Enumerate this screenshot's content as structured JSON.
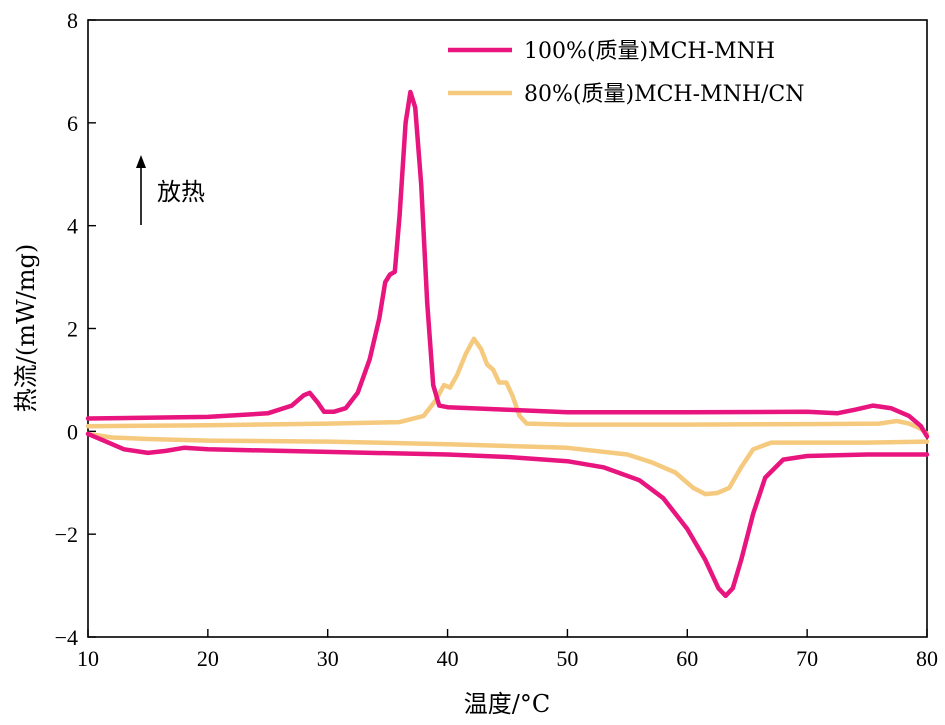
{
  "chart_data": {
    "type": "line",
    "xlabel": "温度/°C",
    "ylabel": "热流/(mW/mg)",
    "xlim": [
      10,
      80
    ],
    "ylim": [
      -4,
      8
    ],
    "xticks": [
      "10",
      "20",
      "30",
      "40",
      "50",
      "60",
      "70",
      "80"
    ],
    "yticks": [
      "−4",
      "−2",
      "0",
      "2",
      "4",
      "6",
      "8"
    ],
    "grid": false,
    "legend_position": "top-right",
    "annotation": "放热",
    "series": [
      {
        "name": "100%(质量)MCH-MNH",
        "color": "#e8157f",
        "heating": [
          [
            10,
            0.25
          ],
          [
            20,
            0.28
          ],
          [
            25,
            0.35
          ],
          [
            27,
            0.5
          ],
          [
            28,
            0.7
          ],
          [
            28.5,
            0.75
          ],
          [
            29.2,
            0.55
          ],
          [
            29.7,
            0.38
          ],
          [
            30.5,
            0.38
          ],
          [
            31.5,
            0.45
          ],
          [
            32.5,
            0.75
          ],
          [
            33.5,
            1.4
          ],
          [
            34.3,
            2.2
          ],
          [
            34.8,
            2.9
          ],
          [
            35.2,
            3.05
          ],
          [
            35.6,
            3.1
          ],
          [
            36.0,
            4.2
          ],
          [
            36.5,
            6.0
          ],
          [
            36.9,
            6.6
          ],
          [
            37.3,
            6.3
          ],
          [
            37.8,
            4.8
          ],
          [
            38.3,
            2.5
          ],
          [
            38.8,
            0.9
          ],
          [
            39.3,
            0.5
          ],
          [
            40,
            0.47
          ],
          [
            45,
            0.42
          ],
          [
            50,
            0.37
          ],
          [
            60,
            0.37
          ],
          [
            70,
            0.38
          ],
          [
            72.5,
            0.35
          ],
          [
            74,
            0.42
          ],
          [
            75.5,
            0.5
          ],
          [
            77,
            0.45
          ],
          [
            78.5,
            0.3
          ],
          [
            79.5,
            0.1
          ],
          [
            80,
            -0.1
          ]
        ],
        "cooling": [
          [
            80,
            -0.45
          ],
          [
            75,
            -0.45
          ],
          [
            70,
            -0.48
          ],
          [
            68,
            -0.55
          ],
          [
            66.5,
            -0.9
          ],
          [
            65.5,
            -1.6
          ],
          [
            64.5,
            -2.5
          ],
          [
            63.8,
            -3.05
          ],
          [
            63.2,
            -3.2
          ],
          [
            62.6,
            -3.05
          ],
          [
            61.5,
            -2.5
          ],
          [
            60,
            -1.9
          ],
          [
            58,
            -1.3
          ],
          [
            56,
            -0.95
          ],
          [
            53,
            -0.7
          ],
          [
            50,
            -0.58
          ],
          [
            45,
            -0.5
          ],
          [
            40,
            -0.45
          ],
          [
            30,
            -0.4
          ],
          [
            20,
            -0.35
          ],
          [
            18,
            -0.32
          ],
          [
            16.5,
            -0.38
          ],
          [
            15,
            -0.42
          ],
          [
            13,
            -0.35
          ],
          [
            11.5,
            -0.2
          ],
          [
            10,
            -0.05
          ]
        ]
      },
      {
        "name": "80%(质量)MCH-MNH/CN",
        "color": "#f5c97e",
        "heating": [
          [
            10,
            0.1
          ],
          [
            20,
            0.12
          ],
          [
            30,
            0.15
          ],
          [
            36,
            0.18
          ],
          [
            38,
            0.3
          ],
          [
            39,
            0.6
          ],
          [
            39.7,
            0.9
          ],
          [
            40.2,
            0.85
          ],
          [
            40.8,
            1.1
          ],
          [
            41.5,
            1.5
          ],
          [
            42.2,
            1.8
          ],
          [
            42.8,
            1.6
          ],
          [
            43.3,
            1.3
          ],
          [
            43.8,
            1.2
          ],
          [
            44.3,
            0.95
          ],
          [
            44.9,
            0.95
          ],
          [
            45.4,
            0.7
          ],
          [
            46,
            0.3
          ],
          [
            46.6,
            0.15
          ],
          [
            50,
            0.13
          ],
          [
            60,
            0.13
          ],
          [
            70,
            0.14
          ],
          [
            76,
            0.15
          ],
          [
            77.5,
            0.2
          ],
          [
            78.5,
            0.15
          ],
          [
            79.5,
            0.05
          ],
          [
            80,
            -0.05
          ]
        ],
        "cooling": [
          [
            80,
            -0.2
          ],
          [
            75,
            -0.22
          ],
          [
            70,
            -0.22
          ],
          [
            67,
            -0.22
          ],
          [
            65.5,
            -0.35
          ],
          [
            64.5,
            -0.7
          ],
          [
            63.5,
            -1.1
          ],
          [
            62.5,
            -1.2
          ],
          [
            61.5,
            -1.22
          ],
          [
            60.5,
            -1.1
          ],
          [
            59,
            -0.8
          ],
          [
            57,
            -0.6
          ],
          [
            55,
            -0.45
          ],
          [
            50,
            -0.32
          ],
          [
            40,
            -0.25
          ],
          [
            30,
            -0.2
          ],
          [
            20,
            -0.18
          ],
          [
            15,
            -0.15
          ],
          [
            12,
            -0.12
          ],
          [
            10,
            -0.05
          ]
        ]
      }
    ]
  }
}
